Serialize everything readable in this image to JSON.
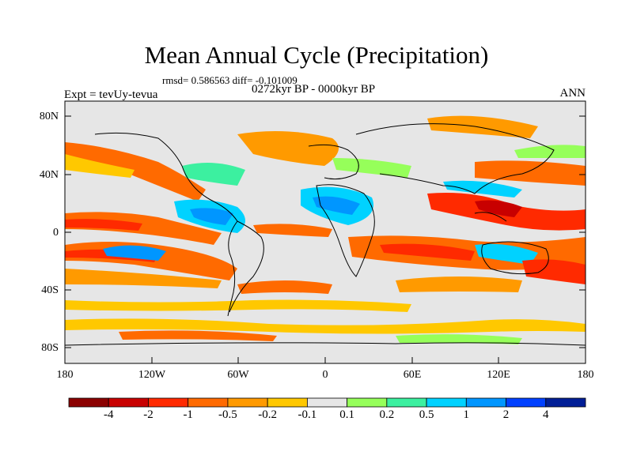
{
  "title": "Mean Annual Cycle (Precipitation)",
  "stats": "rmsd= 0.586563 diff= -0.101009",
  "period": "0272kyr BP - 0000kyr BP",
  "experiment": "Expt = tevUy-tevua",
  "season": "ANN",
  "yticks": [
    "80N",
    "40N",
    "0",
    "40S",
    "80S"
  ],
  "xticks": [
    "180",
    "120W",
    "60W",
    "0",
    "60E",
    "120E",
    "180"
  ],
  "colorbar": {
    "colors": [
      "#8b0000",
      "#c80000",
      "#ff2a00",
      "#ff6a00",
      "#ff9a00",
      "#ffc800",
      "#e6e6e6",
      "#96ff5a",
      "#3cf0a0",
      "#00d2ff",
      "#0096ff",
      "#0040ff",
      "#001e96"
    ],
    "labels": [
      "-4",
      "-2",
      "-1",
      "-0.5",
      "-0.2",
      "-0.1",
      "0.1",
      "0.2",
      "0.5",
      "1",
      "2",
      "4"
    ]
  }
}
